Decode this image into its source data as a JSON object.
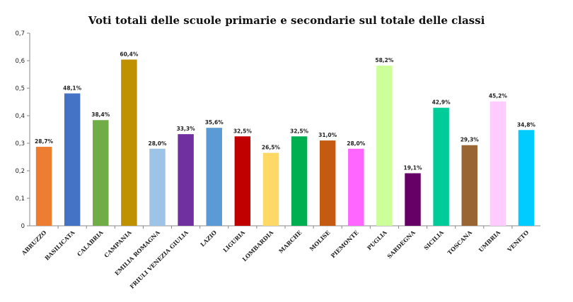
{
  "chart_data": {
    "type": "bar",
    "title": "Voti totali delle scuole primarie e secondarie sul totale delle classi",
    "xlabel": "",
    "ylabel": "",
    "ylim": [
      0,
      0.7
    ],
    "yticks": [
      "0",
      "0,1",
      "0,2",
      "0,3",
      "0,4",
      "0,5",
      "0,6",
      "0,7"
    ],
    "grid": false,
    "legend": "none",
    "categories": [
      "ABRUZZO",
      "BASILICATA",
      "CALABRIA",
      "CAMPANIA",
      "EMILIA ROMAGNA",
      "FRIULI VENEZIA GIULIA",
      "LAZIO",
      "LIGURIA",
      "LOMBARDIA",
      "MARCHE",
      "MOLISE",
      "PIEMONTE",
      "PUGLIA",
      "SARDEGNA",
      "SICILIA",
      "TOSCANA",
      "UMBRIA",
      "VENETO"
    ],
    "values": [
      0.287,
      0.481,
      0.384,
      0.604,
      0.28,
      0.333,
      0.356,
      0.325,
      0.265,
      0.325,
      0.31,
      0.28,
      0.582,
      0.191,
      0.429,
      0.293,
      0.452,
      0.348
    ],
    "data_labels": [
      "28,7%",
      "48,1%",
      "38,4%",
      "60,4%",
      "28,0%",
      "33,3%",
      "35,6%",
      "32,5%",
      "26,5%",
      "32,5%",
      "31,0%",
      "28,0%",
      "58,2%",
      "19,1%",
      "42,9%",
      "29,3%",
      "45,2%",
      "34,8%"
    ],
    "colors": [
      "#ED7D31",
      "#4472C4",
      "#70AD47",
      "#BF9000",
      "#9DC3E6",
      "#7030A0",
      "#5B9BD5",
      "#C00000",
      "#FFD966",
      "#00B050",
      "#C55A11",
      "#FF66FF",
      "#CCFF99",
      "#660066",
      "#00CC99",
      "#996633",
      "#FFCCFF",
      "#00CCFF"
    ]
  }
}
